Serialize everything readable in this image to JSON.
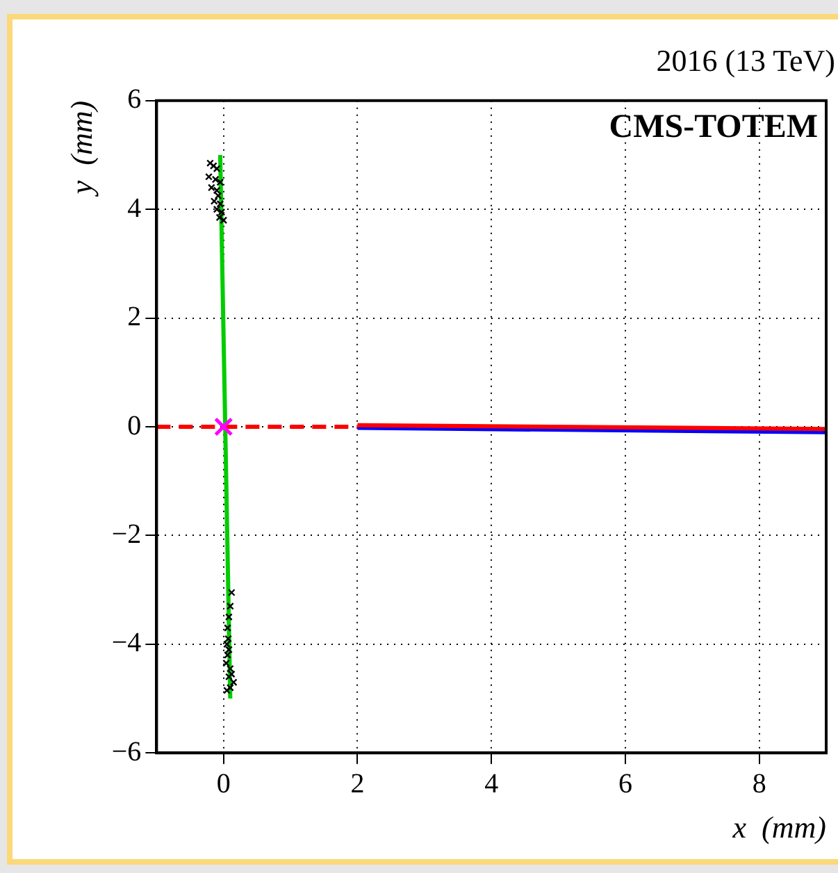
{
  "chart_data": {
    "type": "line",
    "title": "2016 (13 TeV)",
    "xlabel": "x  (mm)",
    "ylabel": "y  (mm)",
    "annotations": [
      "CMS-TOTEM"
    ],
    "xlim": [
      -1,
      9
    ],
    "xticks": [
      0,
      2,
      4,
      6,
      8
    ],
    "ylim": [
      -6,
      6
    ],
    "yticks": [
      {
        "value": -6,
        "label": "−6"
      },
      {
        "value": -4,
        "label": "−4"
      },
      {
        "value": -2,
        "label": "−2"
      },
      0,
      2,
      4,
      6
    ],
    "grid": true,
    "line_style": "dotted",
    "series": [
      {
        "type": "line",
        "color": "#ff0000",
        "x": [
          -1,
          2
        ],
        "values": [
          0,
          0
        ],
        "line_style": "dashed",
        "marker": "none"
      },
      {
        "type": "line",
        "color": "#ff0000",
        "x": [
          2,
          9
        ],
        "values": [
          0.03,
          -0.04
        ],
        "line_style": "solid",
        "marker": "none"
      },
      {
        "type": "line",
        "color": "#0000ff",
        "x": [
          2,
          9
        ],
        "values": [
          -0.02,
          -0.1
        ],
        "line_style": "solid",
        "marker": "none"
      },
      {
        "type": "line",
        "color": "#00cc00",
        "x": [
          -0.05,
          0.1
        ],
        "values": [
          5,
          -5
        ],
        "line_style": "solid",
        "marker": "none"
      },
      {
        "type": "scatter",
        "color": "#000000",
        "marker": "cross",
        "x": [
          -0.2,
          -0.15,
          -0.1,
          -0.22,
          -0.12,
          -0.05,
          -0.18,
          -0.1,
          -0.08,
          -0.14,
          -0.05,
          -0.1,
          -0.03,
          -0.06,
          0.0
        ],
        "values": [
          4.85,
          4.8,
          4.75,
          4.6,
          4.55,
          4.5,
          4.4,
          4.35,
          4.25,
          4.15,
          4.1,
          4.0,
          3.95,
          3.85,
          3.8
        ]
      },
      {
        "type": "scatter",
        "color": "#000000",
        "marker": "cross",
        "x": [
          0.12,
          0.1,
          0.08,
          0.06,
          0.07,
          0.05,
          0.08,
          0.06,
          0.04,
          0.1,
          0.12,
          0.08,
          0.15,
          0.1,
          0.05
        ],
        "values": [
          -3.05,
          -3.3,
          -3.5,
          -3.7,
          -3.9,
          -4.0,
          -4.1,
          -4.2,
          -4.35,
          -4.45,
          -4.55,
          -4.6,
          -4.7,
          -4.8,
          -4.85
        ]
      },
      {
        "type": "scatter",
        "color": "#ff00ff",
        "marker": "cross",
        "x": [
          0
        ],
        "values": [
          0
        ]
      }
    ]
  }
}
